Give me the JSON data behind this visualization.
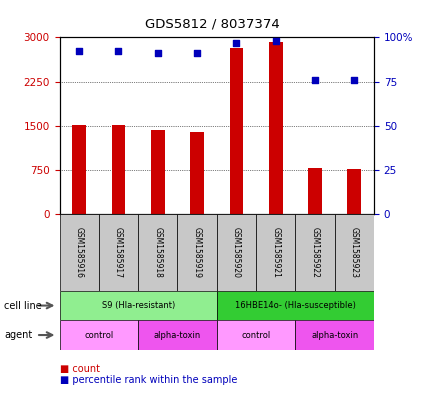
{
  "title": "GDS5812 / 8037374",
  "samples": [
    "GSM1585916",
    "GSM1585917",
    "GSM1585918",
    "GSM1585919",
    "GSM1585920",
    "GSM1585921",
    "GSM1585922",
    "GSM1585923"
  ],
  "counts": [
    1510,
    1510,
    1430,
    1400,
    2820,
    2920,
    780,
    770
  ],
  "percentile_ranks": [
    92,
    92,
    91,
    91,
    97,
    98,
    76,
    76
  ],
  "ylim_left": [
    0,
    3000
  ],
  "ylim_right": [
    0,
    100
  ],
  "yticks_left": [
    0,
    750,
    1500,
    2250,
    3000
  ],
  "yticks_right": [
    0,
    25,
    50,
    75,
    100
  ],
  "ytick_left_labels": [
    "0",
    "750",
    "1500",
    "2250",
    "3000"
  ],
  "ytick_right_labels": [
    "0",
    "25",
    "50",
    "75",
    "100%"
  ],
  "cell_line_groups": [
    {
      "label": "S9 (Hla-resistant)",
      "start": 0,
      "end": 4,
      "color": "#90EE90"
    },
    {
      "label": "16HBE14o- (Hla-susceptible)",
      "start": 4,
      "end": 8,
      "color": "#33CC33"
    }
  ],
  "agent_groups": [
    {
      "label": "control",
      "start": 0,
      "end": 2,
      "color": "#FF99FF"
    },
    {
      "label": "alpha-toxin",
      "start": 2,
      "end": 4,
      "color": "#EE55EE"
    },
    {
      "label": "control",
      "start": 4,
      "end": 6,
      "color": "#FF99FF"
    },
    {
      "label": "alpha-toxin",
      "start": 6,
      "end": 8,
      "color": "#EE55EE"
    }
  ],
  "bar_color": "#CC0000",
  "dot_color": "#0000BB",
  "bar_width": 0.35,
  "left_axis_color": "#CC0000",
  "right_axis_color": "#0000BB",
  "sample_box_color": "#C8C8C8",
  "cell_line_label": "cell line",
  "agent_label": "agent",
  "legend_count_label": "count",
  "legend_pct_label": "percentile rank within the sample"
}
